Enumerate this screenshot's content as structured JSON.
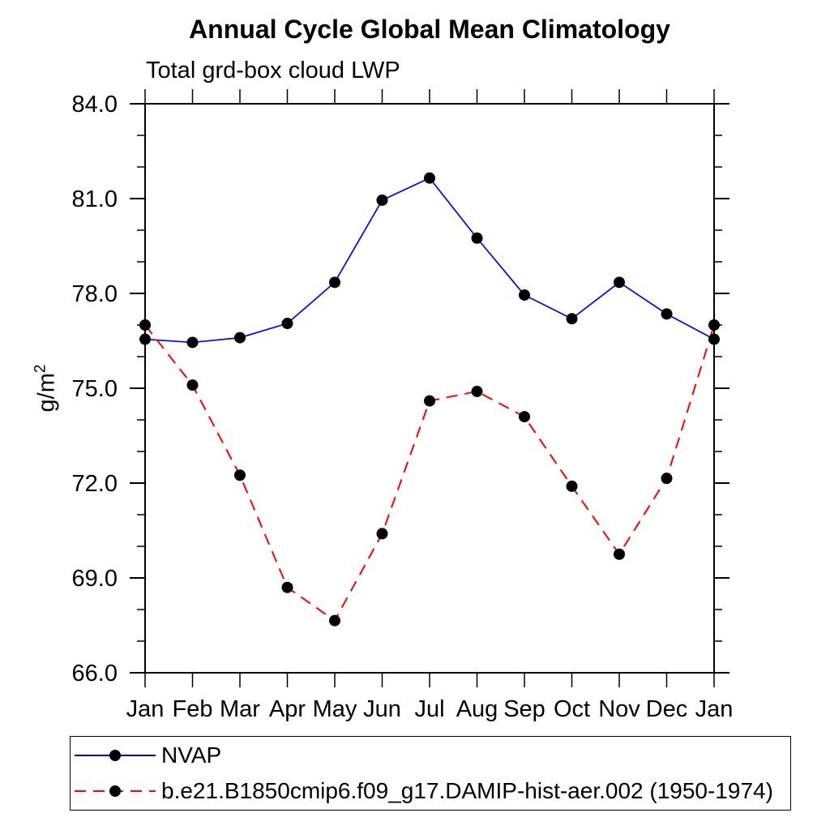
{
  "title": "Annual Cycle Global Mean Climatology",
  "subtitle": "Total grd-box cloud LWP",
  "y_axis": {
    "label_base": "g/m",
    "label_sup": "2",
    "tick_labels": [
      "84.0",
      "81.0",
      "78.0",
      "75.0",
      "72.0",
      "69.0",
      "66.0"
    ]
  },
  "x_axis": {
    "tick_labels": [
      "Jan",
      "Feb",
      "Mar",
      "Apr",
      "May",
      "Jun",
      "Jul",
      "Aug",
      "Sep",
      "Oct",
      "Nov",
      "Dec",
      "Jan"
    ]
  },
  "colors": {
    "axis": "#000000",
    "marker": "#000000",
    "nvap_line": "#0000ff",
    "model_line": "#ff0000"
  },
  "chart_data": {
    "type": "line",
    "title": "Annual Cycle Global Mean Climatology",
    "subtitle": "Total grd-box cloud LWP",
    "ylabel": "g/m²",
    "xlabel": "",
    "categories": [
      "Jan",
      "Feb",
      "Mar",
      "Apr",
      "May",
      "Jun",
      "Jul",
      "Aug",
      "Sep",
      "Oct",
      "Nov",
      "Dec",
      "Jan"
    ],
    "ylim": [
      66.0,
      84.0
    ],
    "ytick_major_interval": 3.0,
    "ytick_minor_interval": 1.0,
    "grid": false,
    "legend_position": "bottom",
    "series": [
      {
        "name": "NVAP",
        "line_color": "#0000ff",
        "line_style": "solid",
        "marker": "filled-circle",
        "marker_color": "#000000",
        "values": [
          76.55,
          76.45,
          76.6,
          77.05,
          78.35,
          80.95,
          81.65,
          79.75,
          77.95,
          77.2,
          78.35,
          77.35,
          76.55
        ]
      },
      {
        "name": "b.e21.B1850cmip6.f09_g17.DAMIP-hist-aer.002 (1950-1974)",
        "line_color": "#ff0000",
        "line_style": "dashed",
        "marker": "filled-circle",
        "marker_color": "#000000",
        "values": [
          77.0,
          75.1,
          72.25,
          68.7,
          67.65,
          70.4,
          74.6,
          74.9,
          74.1,
          71.9,
          69.75,
          72.15,
          77.0
        ]
      }
    ]
  }
}
